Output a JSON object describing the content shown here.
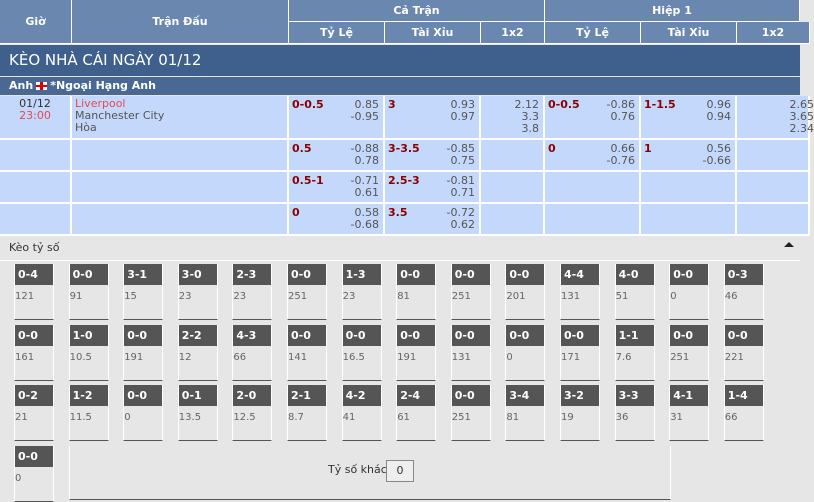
{
  "header": {
    "time": "Giờ",
    "match": "Trận Đấu",
    "full": "Cả Trận",
    "half": "Hiệp 1",
    "cols": [
      "Tỷ Lệ",
      "Tài Xỉu",
      "1x2",
      "Tỷ Lệ",
      "Tài Xỉu",
      "1x2"
    ]
  },
  "title": "KÈO NHÀ CÁI NGÀY 01/12",
  "league": {
    "country": "Anh",
    "name": "*Ngoại Hạng Anh"
  },
  "match": {
    "date": "01/12",
    "time": "23:00",
    "home": "Liverpool",
    "away": "Manchester City",
    "draw": "Hòa"
  },
  "rows": [
    {
      "ft_hdp": "0-0.5",
      "ft_hdp_odds": [
        "0.85",
        "-0.95"
      ],
      "ft_ou": "3",
      "ft_ou_odds": [
        "0.93",
        "0.97"
      ],
      "ft_1x2": [
        "2.12",
        "3.3",
        "3.8"
      ],
      "h1_hdp": "0-0.5",
      "h1_hdp_odds": [
        "-0.86",
        "0.76"
      ],
      "h1_ou": "1-1.5",
      "h1_ou_odds": [
        "0.96",
        "0.94"
      ],
      "h1_1x2": [
        "2.65",
        "3.65",
        "2.34"
      ]
    },
    {
      "ft_hdp": "0.5",
      "ft_hdp_odds": [
        "-0.88",
        "0.78"
      ],
      "ft_ou": "3-3.5",
      "ft_ou_odds": [
        "-0.85",
        "0.75"
      ],
      "ft_1x2": [],
      "h1_hdp": "0",
      "h1_hdp_odds": [
        "0.66",
        "-0.76"
      ],
      "h1_ou": "1",
      "h1_ou_odds": [
        "0.56",
        "-0.66"
      ],
      "h1_1x2": []
    },
    {
      "ft_hdp": "0.5-1",
      "ft_hdp_odds": [
        "-0.71",
        "0.61"
      ],
      "ft_ou": "2.5-3",
      "ft_ou_odds": [
        "-0.81",
        "0.71"
      ],
      "ft_1x2": [],
      "h1_hdp": "",
      "h1_hdp_odds": [],
      "h1_ou": "",
      "h1_ou_odds": [],
      "h1_1x2": []
    },
    {
      "ft_hdp": "0",
      "ft_hdp_odds": [
        "0.58",
        "-0.68"
      ],
      "ft_ou": "3.5",
      "ft_ou_odds": [
        "-0.72",
        "0.62"
      ],
      "ft_1x2": [],
      "h1_hdp": "",
      "h1_hdp_odds": [],
      "h1_ou": "",
      "h1_ou_odds": [],
      "h1_1x2": []
    }
  ],
  "correct_score": {
    "title": "Kèo tỷ số",
    "collapse_icon": "caret-up-icon",
    "other_label": "Tỷ số khác",
    "other_value": "0",
    "items": [
      [
        "0-4",
        "121"
      ],
      [
        "0-0",
        "91"
      ],
      [
        "3-1",
        "15"
      ],
      [
        "3-0",
        "23"
      ],
      [
        "2-3",
        "23"
      ],
      [
        "0-0",
        "251"
      ],
      [
        "1-3",
        "23"
      ],
      [
        "0-0",
        "81"
      ],
      [
        "0-0",
        "251"
      ],
      [
        "0-0",
        "201"
      ],
      [
        "4-4",
        "131"
      ],
      [
        "4-0",
        "51"
      ],
      [
        "0-0",
        "0"
      ],
      [
        "0-3",
        "46"
      ],
      [
        "0-0",
        "161"
      ],
      [
        "1-0",
        "10.5"
      ],
      [
        "0-0",
        "191"
      ],
      [
        "2-2",
        "12"
      ],
      [
        "4-3",
        "66"
      ],
      [
        "0-0",
        "141"
      ],
      [
        "0-0",
        "16.5"
      ],
      [
        "0-0",
        "191"
      ],
      [
        "0-0",
        "131"
      ],
      [
        "0-0",
        "0"
      ],
      [
        "0-0",
        "171"
      ],
      [
        "1-1",
        "7.6"
      ],
      [
        "0-0",
        "251"
      ],
      [
        "0-0",
        "221"
      ],
      [
        "0-2",
        "21"
      ],
      [
        "1-2",
        "11.5"
      ],
      [
        "0-0",
        "0"
      ],
      [
        "0-1",
        "13.5"
      ],
      [
        "2-0",
        "12.5"
      ],
      [
        "2-1",
        "8.7"
      ],
      [
        "4-2",
        "41"
      ],
      [
        "2-4",
        "61"
      ],
      [
        "0-0",
        "251"
      ],
      [
        "3-4",
        "81"
      ],
      [
        "3-2",
        "19"
      ],
      [
        "3-3",
        "36"
      ],
      [
        "4-1",
        "31"
      ],
      [
        "1-4",
        "66"
      ],
      [
        "0-0",
        "0"
      ]
    ]
  },
  "colors": {
    "header": "#6a87b0",
    "title_bar": "#3f5f8c",
    "row": "#c4d8fb",
    "handicap": "#8b0000",
    "kickoff": "#e8484f"
  }
}
